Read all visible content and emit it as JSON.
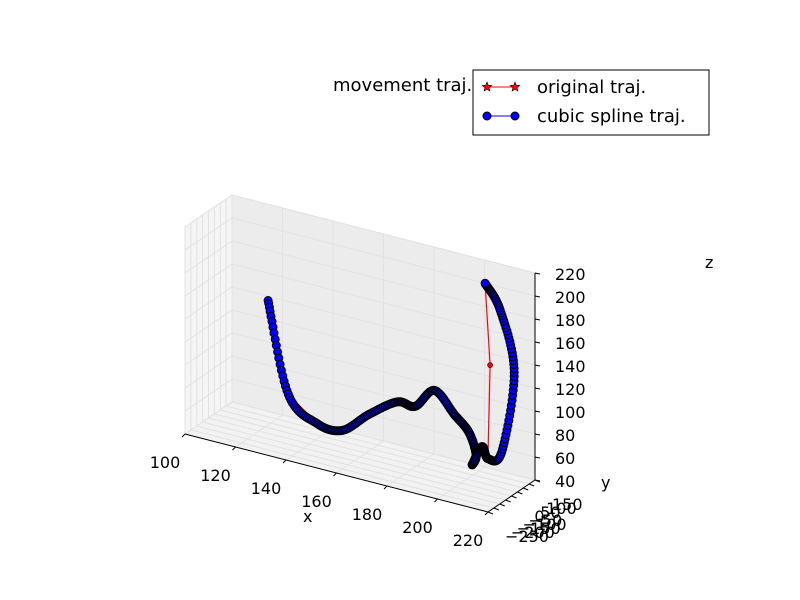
{
  "chart_data": {
    "type": "line3d",
    "title": "movement traj.",
    "xlabel": "x",
    "ylabel": "y",
    "zlabel": "z",
    "xlim": [
      100,
      220
    ],
    "ylim": [
      -250,
      150
    ],
    "zlim": [
      40,
      220
    ],
    "x_ticks": [
      "100",
      "120",
      "140",
      "160",
      "180",
      "200",
      "220"
    ],
    "y_ticks": [
      "−250",
      "−200",
      "−150",
      "−100",
      "−50",
      "0",
      "50",
      "100",
      "150"
    ],
    "z_ticks": [
      "40",
      "60",
      "80",
      "100",
      "120",
      "140",
      "160",
      "180",
      "200",
      "220"
    ],
    "grid": true,
    "legend_position": "top-right",
    "series": [
      {
        "name": "original traj.",
        "color": "#ff0000",
        "marker": "star",
        "points": [
          [
            118,
            70,
            144
          ],
          [
            126,
            70,
            67
          ],
          [
            137,
            80,
            47
          ],
          [
            150,
            15,
            53
          ],
          [
            164,
            -60,
            80
          ],
          [
            178,
            -120,
            103
          ],
          [
            187,
            -160,
            107
          ],
          [
            196,
            -190,
            128
          ],
          [
            205,
            -215,
            114
          ],
          [
            212,
            -240,
            104
          ],
          [
            213,
            -200,
            82
          ],
          [
            211,
            -190,
            72
          ],
          [
            212,
            -130,
            84
          ],
          [
            213,
            -100,
            72
          ],
          [
            212,
            -60,
            150
          ],
          [
            210,
            -60,
            220
          ]
        ]
      },
      {
        "name": "cubic spline traj.",
        "color": "#0000ff",
        "marker": "circle",
        "points": [
          [
            118,
            70,
            144
          ],
          [
            126,
            70,
            67
          ],
          [
            137,
            80,
            47
          ],
          [
            150,
            15,
            53
          ],
          [
            164,
            -60,
            80
          ],
          [
            178,
            -120,
            103
          ],
          [
            187,
            -160,
            107
          ],
          [
            196,
            -190,
            128
          ],
          [
            205,
            -215,
            114
          ],
          [
            212,
            -240,
            104
          ],
          [
            213,
            -200,
            82
          ],
          [
            211,
            -190,
            72
          ],
          [
            212,
            -130,
            84
          ],
          [
            213,
            -100,
            72
          ],
          [
            218,
            -90,
            80
          ],
          [
            222,
            -70,
            150
          ],
          [
            216,
            -60,
            200
          ],
          [
            210,
            -60,
            220
          ]
        ]
      }
    ]
  }
}
